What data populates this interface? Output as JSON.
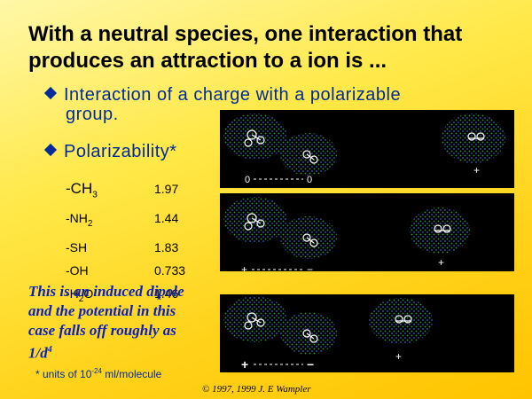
{
  "title": "With a neutral species, one interaction that produces an attraction to a ion is ...",
  "bullets": {
    "b1_line1": "Interaction of a charge with a polarizable",
    "b1_line2": "group.",
    "b2": "Polarizability*"
  },
  "polarizability": [
    {
      "prefix": "-CH",
      "sub": "3",
      "value": "1.97"
    },
    {
      "prefix": "-NH",
      "sub": "2",
      "value": "1.44"
    },
    {
      "prefix": "-SH",
      "sub": "",
      "value": "1.83"
    },
    {
      "prefix": "-OH",
      "sub": "",
      "value": "0.733"
    },
    {
      "prefix": "-H",
      "sub": "2",
      "suffix": "O",
      "value": "1.46"
    }
  ],
  "note": {
    "line1": "This is an induced dipole",
    "line2": "and the potential in this",
    "line3": "case falls off roughly as",
    "line4": "1/d",
    "exp": "4"
  },
  "units": {
    "prefix": "* units of 10",
    "exp": "-24",
    "suffix": " ml/molecule"
  },
  "copyright": "© 1997, 1999 J. E Wampler",
  "panels": [
    {
      "left_sign": "0",
      "right_sign": "0",
      "ion_sign": "+"
    },
    {
      "left_sign": "+",
      "right_sign": "−",
      "ion_sign": "+"
    },
    {
      "left_sign": "+",
      "right_sign": "−",
      "ion_sign": "+"
    }
  ],
  "colors": {
    "dots_green": "#2f9f3a",
    "dots_blue": "#3a5fd0",
    "title_text": "#000000",
    "bullet_text": "#002b9c",
    "note_text": "#0a1fc2"
  }
}
